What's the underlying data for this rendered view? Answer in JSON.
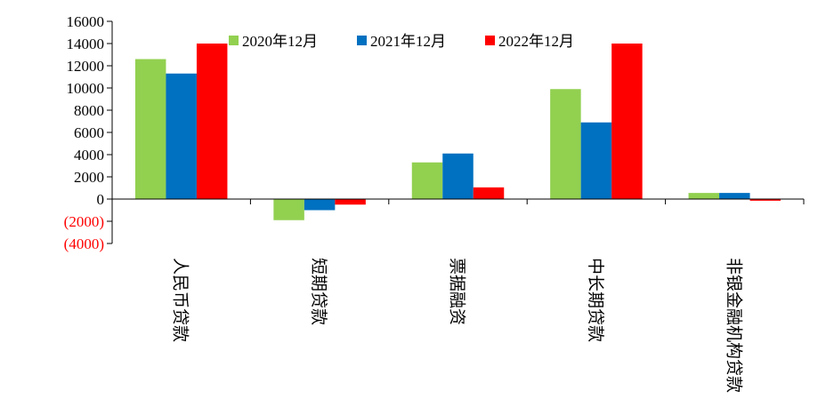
{
  "chart_data": {
    "type": "bar",
    "categories": [
      "人民币贷款",
      "短期贷款",
      "票据融资",
      "中长期贷款",
      "非银金融机构贷款"
    ],
    "series": [
      {
        "name": "2020年12月",
        "values": [
          12600,
          -1900,
          3300,
          9900,
          550
        ]
      },
      {
        "name": "2021年12月",
        "values": [
          11300,
          -1000,
          4100,
          6900,
          550
        ]
      },
      {
        "name": "2022年12月",
        "values": [
          14000,
          -500,
          1050,
          14000,
          -150
        ]
      }
    ],
    "ylim": [
      -4000,
      16000
    ],
    "y_ticks": [
      {
        "value": -4000,
        "label": "(4000)"
      },
      {
        "value": -2000,
        "label": "(2000)"
      },
      {
        "value": 0,
        "label": "0"
      },
      {
        "value": 2000,
        "label": "2000"
      },
      {
        "value": 4000,
        "label": "4000"
      },
      {
        "value": 6000,
        "label": "6000"
      },
      {
        "value": 8000,
        "label": "8000"
      },
      {
        "value": 10000,
        "label": "10000"
      },
      {
        "value": 12000,
        "label": "12000"
      },
      {
        "value": 14000,
        "label": "14000"
      },
      {
        "value": 16000,
        "label": "16000"
      }
    ],
    "negative_label_color": "#ff0000",
    "colors": [
      "#92d050",
      "#0070c0",
      "#ff0000"
    ],
    "legend_position": "top",
    "grid": false,
    "title": "",
    "xlabel": "",
    "ylabel": ""
  }
}
